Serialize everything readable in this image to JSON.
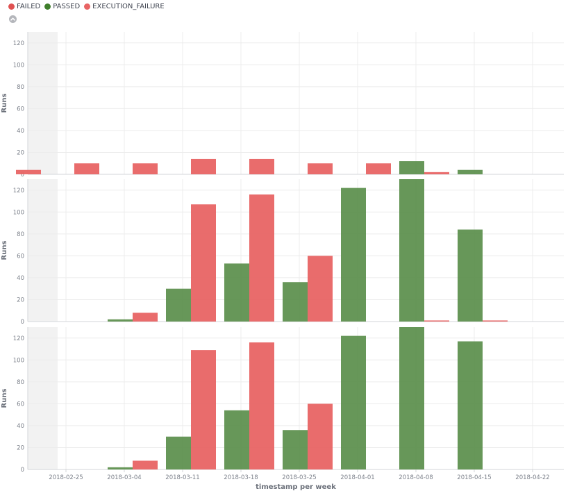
{
  "legend": [
    {
      "name": "FAILED",
      "color": "#e05252"
    },
    {
      "name": "PASSED",
      "color": "#3f7f2c"
    },
    {
      "name": "EXECUTION_FAILURE",
      "color": "#e86464"
    }
  ],
  "collapse_icon": "chevron-up-icon",
  "chart_data": {
    "type": "bar",
    "xlabel": "timestamp per week",
    "ylabel": "Runs",
    "ylim": [
      0,
      130
    ],
    "yticks": [
      0,
      20,
      40,
      60,
      80,
      100,
      120
    ],
    "x_ticks": [
      "2018-02-25",
      "2018-03-04",
      "2018-03-11",
      "2018-03-18",
      "2018-03-25",
      "2018-04-01",
      "2018-04-08",
      "2018-04-15",
      "2018-04-22"
    ],
    "categories": [
      "2018-02-19",
      "2018-02-26",
      "2018-03-05",
      "2018-03-12",
      "2018-03-19",
      "2018-03-26",
      "2018-04-02",
      "2018-04-09",
      "2018-04-16"
    ],
    "shaded_until": "2018-02-24",
    "grid": true,
    "colors": {
      "PASSED": "#5f9150",
      "FAILED": "#e86464"
    },
    "panels": [
      {
        "series": [
          {
            "name": "PASSED",
            "values": [
              0,
              0,
              0,
              0,
              0,
              0,
              0,
              12,
              4
            ]
          },
          {
            "name": "FAILED",
            "values": [
              4,
              10,
              10,
              14,
              14,
              10,
              10,
              2,
              0
            ]
          }
        ]
      },
      {
        "series": [
          {
            "name": "PASSED",
            "values": [
              0,
              0,
              2,
              30,
              53,
              36,
              122,
              130,
              84
            ]
          },
          {
            "name": "FAILED",
            "values": [
              0,
              0,
              8,
              107,
              116,
              60,
              0,
              1,
              1
            ]
          }
        ]
      },
      {
        "series": [
          {
            "name": "PASSED",
            "values": [
              0,
              0,
              2,
              30,
              54,
              36,
              122,
              130,
              117
            ]
          },
          {
            "name": "FAILED",
            "values": [
              0,
              0,
              8,
              109,
              116,
              60,
              0,
              0,
              0
            ]
          }
        ]
      }
    ]
  }
}
